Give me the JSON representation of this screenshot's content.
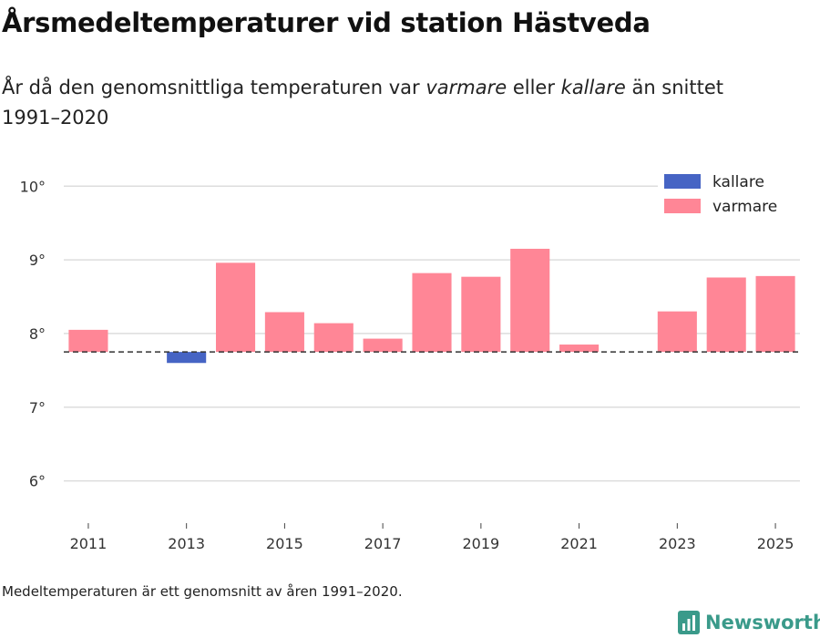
{
  "title": "Årsmedeltemperaturer vid station Hästveda",
  "subtitle": {
    "part1": "År då den genomsnittliga temperaturen var ",
    "warm_word": "varmare",
    "part2": " eller ",
    "cold_word": "kallare",
    "part3": " än snittet 1991–2020"
  },
  "footnote": "Medeltemperaturen är ett genomsnitt av åren 1991–2020.",
  "brand": "Newsworthy",
  "colors": {
    "warmer": "#ff8696",
    "colder": "#4664c4",
    "grid": "#dddddd",
    "reference": "#333333",
    "brand": "#3a9a8a"
  },
  "chart_data": {
    "type": "bar",
    "baseline": 7.75,
    "categories": [
      "2011",
      "2012",
      "2013",
      "2014",
      "2015",
      "2016",
      "2017",
      "2018",
      "2019",
      "2020",
      "2021",
      "2022",
      "2023",
      "2024",
      "2025"
    ],
    "values": [
      8.05,
      null,
      7.6,
      8.96,
      8.29,
      8.14,
      7.93,
      8.82,
      8.77,
      9.15,
      7.85,
      null,
      8.3,
      8.76,
      8.78
    ],
    "ylim": [
      5.5,
      10.3
    ],
    "yticks": [
      6,
      7,
      8,
      9,
      10
    ],
    "ytick_labels": [
      "6°",
      "7°",
      "8°",
      "9°",
      "10°"
    ],
    "xticks": [
      "2011",
      "2013",
      "2015",
      "2017",
      "2019",
      "2021",
      "2023",
      "2025"
    ],
    "legend": [
      {
        "key": "colder",
        "label": "kallare"
      },
      {
        "key": "warmer",
        "label": "varmare"
      }
    ],
    "legend_position": "top-right"
  }
}
